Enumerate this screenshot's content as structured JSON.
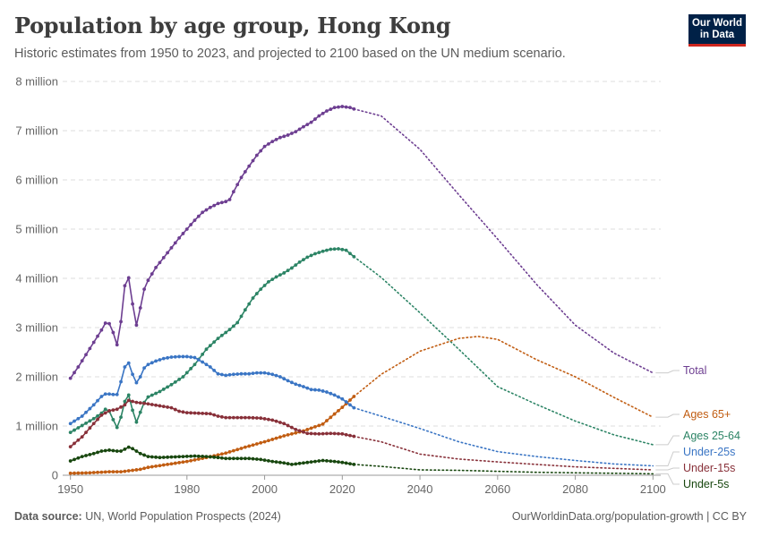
{
  "title": "Population by age group, Hong Kong",
  "subtitle": "Historic estimates from 1950 to 2023, and projected to 2100 based on the UN medium scenario.",
  "logo": {
    "line1": "Our World",
    "line2": "in Data"
  },
  "footer": {
    "source_label": "Data source:",
    "source_text": "UN, World Population Prospects (2024)",
    "url": "OurWorldinData.org/population-growth | CC BY"
  },
  "chart_data": {
    "type": "line",
    "title": "Population by age group, Hong Kong",
    "xlim": [
      1950,
      2100
    ],
    "ylim": [
      0,
      8000000
    ],
    "x_ticks": [
      1950,
      1980,
      2000,
      2020,
      2040,
      2060,
      2080,
      2100
    ],
    "y_ticks": [
      {
        "value": 0,
        "label": "0"
      },
      {
        "value": 1000000,
        "label": "1 million"
      },
      {
        "value": 2000000,
        "label": "2 million"
      },
      {
        "value": 3000000,
        "label": "3 million"
      },
      {
        "value": 4000000,
        "label": "4 million"
      },
      {
        "value": 5000000,
        "label": "5 million"
      },
      {
        "value": 6000000,
        "label": "6 million"
      },
      {
        "value": 7000000,
        "label": "7 million"
      },
      {
        "value": 8000000,
        "label": "8 million"
      }
    ],
    "grid": true,
    "historic_end": 2023,
    "series": [
      {
        "name": "Total",
        "color": "#6d3e91",
        "points": [
          [
            1950,
            1970000
          ],
          [
            1952,
            2200000
          ],
          [
            1954,
            2450000
          ],
          [
            1956,
            2700000
          ],
          [
            1958,
            2950000
          ],
          [
            1959,
            3090000
          ],
          [
            1960,
            3080000
          ],
          [
            1961,
            2900000
          ],
          [
            1962,
            2650000
          ],
          [
            1963,
            3120000
          ],
          [
            1964,
            3850000
          ],
          [
            1965,
            4010000
          ],
          [
            1966,
            3480000
          ],
          [
            1967,
            3050000
          ],
          [
            1968,
            3400000
          ],
          [
            1969,
            3780000
          ],
          [
            1970,
            3960000
          ],
          [
            1972,
            4220000
          ],
          [
            1974,
            4420000
          ],
          [
            1976,
            4620000
          ],
          [
            1978,
            4820000
          ],
          [
            1980,
            5000000
          ],
          [
            1982,
            5180000
          ],
          [
            1984,
            5340000
          ],
          [
            1986,
            5440000
          ],
          [
            1988,
            5520000
          ],
          [
            1990,
            5560000
          ],
          [
            1991,
            5600000
          ],
          [
            1992,
            5760000
          ],
          [
            1994,
            6050000
          ],
          [
            1996,
            6280000
          ],
          [
            1998,
            6500000
          ],
          [
            2000,
            6680000
          ],
          [
            2002,
            6780000
          ],
          [
            2004,
            6860000
          ],
          [
            2006,
            6910000
          ],
          [
            2008,
            6980000
          ],
          [
            2010,
            7080000
          ],
          [
            2012,
            7170000
          ],
          [
            2014,
            7300000
          ],
          [
            2016,
            7400000
          ],
          [
            2018,
            7470000
          ],
          [
            2020,
            7490000
          ],
          [
            2022,
            7470000
          ],
          [
            2023,
            7440000
          ],
          [
            2030,
            7300000
          ],
          [
            2040,
            6620000
          ],
          [
            2050,
            5700000
          ],
          [
            2060,
            4800000
          ],
          [
            2070,
            3880000
          ],
          [
            2080,
            3050000
          ],
          [
            2090,
            2480000
          ],
          [
            2100,
            2080000
          ]
        ]
      },
      {
        "name": "Ages 25-64",
        "color": "#2c8465",
        "points": [
          [
            1950,
            870000
          ],
          [
            1953,
            1010000
          ],
          [
            1956,
            1150000
          ],
          [
            1958,
            1260000
          ],
          [
            1959,
            1340000
          ],
          [
            1960,
            1300000
          ],
          [
            1961,
            1130000
          ],
          [
            1962,
            970000
          ],
          [
            1963,
            1180000
          ],
          [
            1964,
            1500000
          ],
          [
            1965,
            1630000
          ],
          [
            1966,
            1320000
          ],
          [
            1967,
            1080000
          ],
          [
            1968,
            1280000
          ],
          [
            1969,
            1480000
          ],
          [
            1970,
            1590000
          ],
          [
            1973,
            1700000
          ],
          [
            1976,
            1840000
          ],
          [
            1979,
            2000000
          ],
          [
            1982,
            2250000
          ],
          [
            1985,
            2560000
          ],
          [
            1988,
            2780000
          ],
          [
            1991,
            2960000
          ],
          [
            1993,
            3100000
          ],
          [
            1995,
            3360000
          ],
          [
            1997,
            3600000
          ],
          [
            1999,
            3780000
          ],
          [
            2001,
            3930000
          ],
          [
            2003,
            4030000
          ],
          [
            2005,
            4110000
          ],
          [
            2007,
            4210000
          ],
          [
            2009,
            4330000
          ],
          [
            2011,
            4430000
          ],
          [
            2013,
            4500000
          ],
          [
            2015,
            4550000
          ],
          [
            2017,
            4590000
          ],
          [
            2019,
            4600000
          ],
          [
            2021,
            4570000
          ],
          [
            2023,
            4440000
          ],
          [
            2030,
            4020000
          ],
          [
            2040,
            3300000
          ],
          [
            2050,
            2560000
          ],
          [
            2060,
            1800000
          ],
          [
            2070,
            1440000
          ],
          [
            2080,
            1100000
          ],
          [
            2090,
            820000
          ],
          [
            2100,
            620000
          ]
        ]
      },
      {
        "name": "Ages 65+",
        "color": "#c15d12",
        "points": [
          [
            1950,
            40000
          ],
          [
            1955,
            50000
          ],
          [
            1960,
            70000
          ],
          [
            1963,
            70000
          ],
          [
            1965,
            90000
          ],
          [
            1968,
            120000
          ],
          [
            1970,
            160000
          ],
          [
            1975,
            220000
          ],
          [
            1980,
            280000
          ],
          [
            1985,
            360000
          ],
          [
            1990,
            450000
          ],
          [
            1995,
            570000
          ],
          [
            2000,
            680000
          ],
          [
            2005,
            800000
          ],
          [
            2010,
            900000
          ],
          [
            2015,
            1040000
          ],
          [
            2020,
            1380000
          ],
          [
            2023,
            1600000
          ],
          [
            2030,
            2050000
          ],
          [
            2040,
            2520000
          ],
          [
            2050,
            2780000
          ],
          [
            2055,
            2820000
          ],
          [
            2060,
            2760000
          ],
          [
            2070,
            2350000
          ],
          [
            2080,
            2000000
          ],
          [
            2090,
            1580000
          ],
          [
            2100,
            1180000
          ]
        ]
      },
      {
        "name": "Under-25s",
        "color": "#3a75c4",
        "points": [
          [
            1950,
            1050000
          ],
          [
            1953,
            1200000
          ],
          [
            1956,
            1430000
          ],
          [
            1958,
            1600000
          ],
          [
            1959,
            1650000
          ],
          [
            1960,
            1650000
          ],
          [
            1961,
            1640000
          ],
          [
            1962,
            1640000
          ],
          [
            1963,
            1900000
          ],
          [
            1964,
            2200000
          ],
          [
            1965,
            2280000
          ],
          [
            1966,
            2050000
          ],
          [
            1967,
            1880000
          ],
          [
            1968,
            2000000
          ],
          [
            1969,
            2180000
          ],
          [
            1970,
            2250000
          ],
          [
            1972,
            2320000
          ],
          [
            1974,
            2370000
          ],
          [
            1976,
            2400000
          ],
          [
            1978,
            2410000
          ],
          [
            1980,
            2410000
          ],
          [
            1982,
            2390000
          ],
          [
            1984,
            2300000
          ],
          [
            1986,
            2200000
          ],
          [
            1988,
            2060000
          ],
          [
            1990,
            2030000
          ],
          [
            1992,
            2050000
          ],
          [
            1994,
            2060000
          ],
          [
            1996,
            2060000
          ],
          [
            1998,
            2080000
          ],
          [
            2000,
            2080000
          ],
          [
            2002,
            2050000
          ],
          [
            2004,
            2000000
          ],
          [
            2006,
            1920000
          ],
          [
            2008,
            1850000
          ],
          [
            2010,
            1800000
          ],
          [
            2012,
            1740000
          ],
          [
            2014,
            1730000
          ],
          [
            2016,
            1690000
          ],
          [
            2018,
            1630000
          ],
          [
            2020,
            1550000
          ],
          [
            2023,
            1370000
          ],
          [
            2030,
            1200000
          ],
          [
            2040,
            950000
          ],
          [
            2050,
            680000
          ],
          [
            2060,
            480000
          ],
          [
            2070,
            380000
          ],
          [
            2080,
            300000
          ],
          [
            2090,
            230000
          ],
          [
            2100,
            190000
          ]
        ]
      },
      {
        "name": "Under-15s",
        "color": "#883039",
        "points": [
          [
            1950,
            580000
          ],
          [
            1953,
            780000
          ],
          [
            1956,
            1050000
          ],
          [
            1958,
            1220000
          ],
          [
            1960,
            1310000
          ],
          [
            1962,
            1340000
          ],
          [
            1964,
            1430000
          ],
          [
            1965,
            1520000
          ],
          [
            1967,
            1480000
          ],
          [
            1970,
            1450000
          ],
          [
            1973,
            1410000
          ],
          [
            1976,
            1370000
          ],
          [
            1978,
            1300000
          ],
          [
            1980,
            1270000
          ],
          [
            1983,
            1260000
          ],
          [
            1986,
            1250000
          ],
          [
            1988,
            1200000
          ],
          [
            1990,
            1170000
          ],
          [
            1993,
            1170000
          ],
          [
            1996,
            1170000
          ],
          [
            1999,
            1160000
          ],
          [
            2002,
            1120000
          ],
          [
            2005,
            1050000
          ],
          [
            2008,
            930000
          ],
          [
            2011,
            850000
          ],
          [
            2014,
            840000
          ],
          [
            2017,
            850000
          ],
          [
            2020,
            840000
          ],
          [
            2023,
            790000
          ],
          [
            2030,
            680000
          ],
          [
            2040,
            430000
          ],
          [
            2050,
            330000
          ],
          [
            2060,
            270000
          ],
          [
            2070,
            220000
          ],
          [
            2080,
            170000
          ],
          [
            2090,
            140000
          ],
          [
            2100,
            110000
          ]
        ]
      },
      {
        "name": "Under-5s",
        "color": "#18470f",
        "points": [
          [
            1950,
            290000
          ],
          [
            1953,
            380000
          ],
          [
            1956,
            440000
          ],
          [
            1958,
            490000
          ],
          [
            1960,
            510000
          ],
          [
            1962,
            490000
          ],
          [
            1963,
            490000
          ],
          [
            1964,
            530000
          ],
          [
            1965,
            570000
          ],
          [
            1966,
            540000
          ],
          [
            1968,
            440000
          ],
          [
            1970,
            380000
          ],
          [
            1973,
            360000
          ],
          [
            1976,
            370000
          ],
          [
            1979,
            380000
          ],
          [
            1982,
            390000
          ],
          [
            1985,
            380000
          ],
          [
            1988,
            360000
          ],
          [
            1990,
            340000
          ],
          [
            1993,
            340000
          ],
          [
            1996,
            340000
          ],
          [
            1999,
            320000
          ],
          [
            2002,
            280000
          ],
          [
            2005,
            250000
          ],
          [
            2007,
            220000
          ],
          [
            2010,
            250000
          ],
          [
            2013,
            280000
          ],
          [
            2015,
            300000
          ],
          [
            2018,
            280000
          ],
          [
            2020,
            260000
          ],
          [
            2023,
            220000
          ],
          [
            2030,
            180000
          ],
          [
            2040,
            110000
          ],
          [
            2050,
            100000
          ],
          [
            2060,
            80000
          ],
          [
            2070,
            60000
          ],
          [
            2080,
            50000
          ],
          [
            2090,
            40000
          ],
          [
            2100,
            30000
          ]
        ]
      }
    ]
  }
}
